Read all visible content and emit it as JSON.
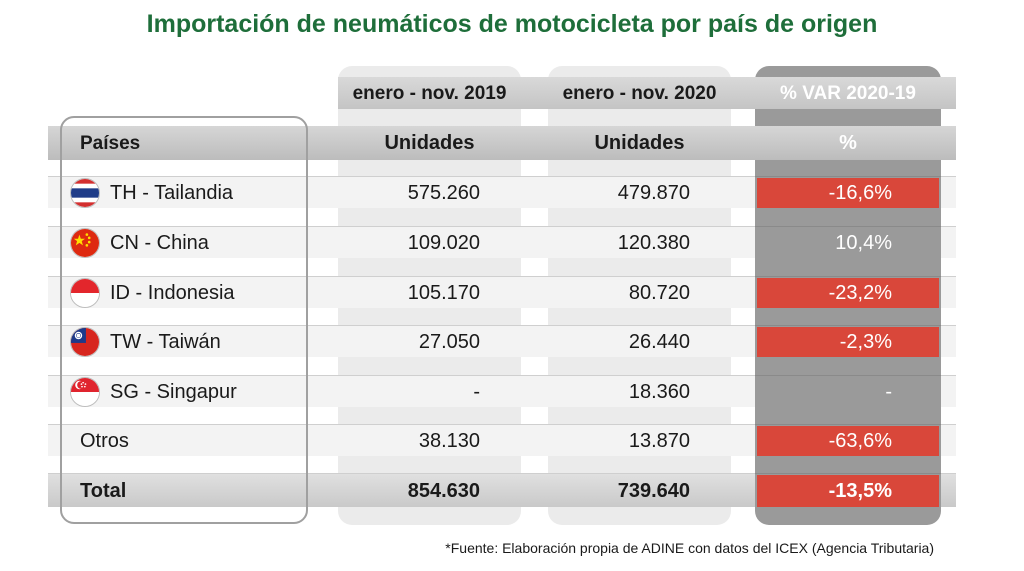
{
  "title": "Importación de neumáticos de motocicleta por país de origen",
  "footnote": "*Fuente: Elaboración propia de ADINE con datos del ICEX (Agencia Tributaria)",
  "colors": {
    "title": "#1e6e3a",
    "negative": "#d9473a",
    "var_column": "#9a9a9a"
  },
  "chart_data": {
    "type": "table",
    "title": "Importación de neumáticos de motocicleta por país de origen",
    "period_headers": [
      "enero - nov.  2019",
      "enero - nov. 2020",
      "% VAR 2020-19"
    ],
    "columns": [
      "Países",
      "Unidades",
      "Unidades",
      "%"
    ],
    "rows": [
      {
        "country": "TH - Tailandia",
        "flag": "thailand-flag-icon",
        "u2019": "575.260",
        "u2020": "479.870",
        "var": "-16,6%",
        "negative": true
      },
      {
        "country": "CN - China",
        "flag": "china-flag-icon",
        "u2019": "109.020",
        "u2020": "120.380",
        "var": "10,4%",
        "negative": false
      },
      {
        "country": "ID - Indonesia",
        "flag": "indonesia-flag-icon",
        "u2019": "105.170",
        "u2020": "80.720",
        "var": "-23,2%",
        "negative": true
      },
      {
        "country": "TW - Taiwán",
        "flag": "taiwan-flag-icon",
        "u2019": "27.050",
        "u2020": "26.440",
        "var": "-2,3%",
        "negative": true
      },
      {
        "country": "SG - Singapur",
        "flag": "singapore-flag-icon",
        "u2019": "-",
        "u2020": "18.360",
        "var": "-",
        "negative": false
      },
      {
        "country": "Otros",
        "flag": "",
        "u2019": "38.130",
        "u2020": "13.870",
        "var": "-63,6%",
        "negative": true
      }
    ],
    "total": {
      "label": "Total",
      "u2019": "854.630",
      "u2020": "739.640",
      "var": "-13,5%",
      "negative": true
    }
  }
}
